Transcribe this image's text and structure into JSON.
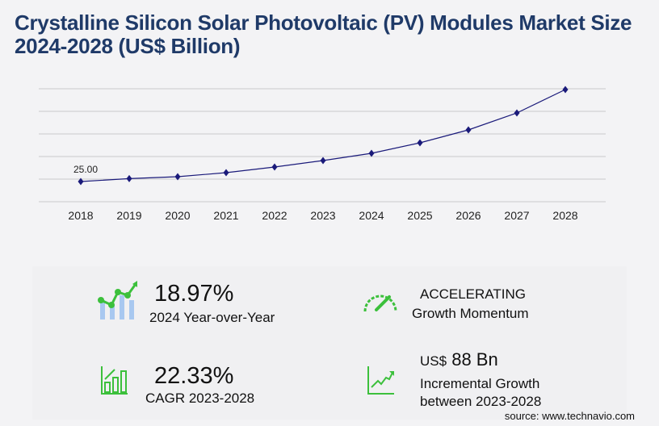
{
  "title": "Crystalline Silicon Solar Photovoltaic (PV) Modules Market Size 2024-2028 (US$ Billion)",
  "chart_data": {
    "type": "line",
    "categories": [
      "2018",
      "2019",
      "2020",
      "2021",
      "2022",
      "2023",
      "2024",
      "2025",
      "2026",
      "2027",
      "2028"
    ],
    "values": [
      25,
      28.6,
      31,
      36,
      43,
      51,
      60,
      73,
      89,
      110,
      139
    ],
    "data_labels": {
      "2018": "25.00"
    },
    "ylim": [
      0,
      140
    ],
    "grid": true,
    "line_color": "#1a1a7a",
    "marker": "diamond"
  },
  "stats": {
    "yoy_value": "18.97%",
    "yoy_label": "2024 Year-over-Year",
    "momentum_value": "ACCELERATING",
    "momentum_label": "Growth Momentum",
    "cagr_value": "22.33%",
    "cagr_label": "CAGR 2023-2028",
    "incr_prefix": "US$",
    "incr_value": "88 Bn",
    "incr_label1": "Incremental Growth",
    "incr_label2": "between 2023-2028"
  },
  "source": "source: www.technavio.com",
  "colors": {
    "title": "#1f3a68",
    "icon_green": "#3cc03c",
    "icon_blue": "#a8c8f0"
  }
}
